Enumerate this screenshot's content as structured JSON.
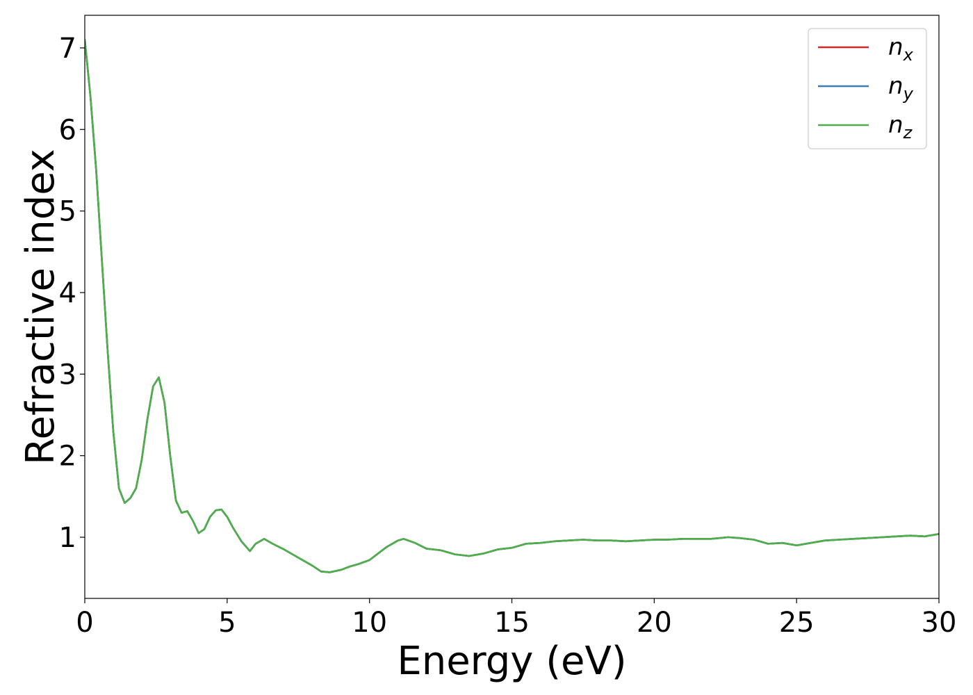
{
  "chart_data": {
    "type": "line",
    "title": "",
    "xlabel": "Energy (eV)",
    "ylabel": "Refractive index",
    "xlim": [
      0,
      30
    ],
    "ylim": [
      0.25,
      7.4
    ],
    "xticks": [
      0,
      5,
      10,
      15,
      20,
      25,
      30
    ],
    "yticks": [
      1,
      2,
      3,
      4,
      5,
      6,
      7
    ],
    "grid": false,
    "legend_position": "top-right",
    "series": [
      {
        "name": "n",
        "subscript": "x",
        "color": "#d62728",
        "x": [
          0,
          0.2,
          0.4,
          0.6,
          0.8,
          1.0,
          1.2,
          1.4,
          1.6,
          1.8,
          2.0,
          2.2,
          2.4,
          2.6,
          2.8,
          3.0,
          3.2,
          3.4,
          3.6,
          3.8,
          4.0,
          4.2,
          4.4,
          4.6,
          4.8,
          5.0,
          5.2,
          5.5,
          5.8,
          6.0,
          6.3,
          6.6,
          7.0,
          7.5,
          8.0,
          8.3,
          8.6,
          9.0,
          9.3,
          9.6,
          10.0,
          10.3,
          10.6,
          11.0,
          11.2,
          11.6,
          12.0,
          12.5,
          13.0,
          13.5,
          14.0,
          14.5,
          15.0,
          15.5,
          16.0,
          16.5,
          17.0,
          17.5,
          18.0,
          18.5,
          19.0,
          19.5,
          20.0,
          20.5,
          21.0,
          21.5,
          22.0,
          22.6,
          23.0,
          23.5,
          24.0,
          24.5,
          25.0,
          25.5,
          26.0,
          26.5,
          27.0,
          27.5,
          28.0,
          28.5,
          29.0,
          29.5,
          30.0
        ],
        "y": [
          7.1,
          6.4,
          5.5,
          4.4,
          3.3,
          2.3,
          1.6,
          1.42,
          1.48,
          1.6,
          1.95,
          2.45,
          2.85,
          2.96,
          2.65,
          2.0,
          1.45,
          1.3,
          1.32,
          1.2,
          1.05,
          1.1,
          1.25,
          1.33,
          1.34,
          1.25,
          1.12,
          0.95,
          0.83,
          0.92,
          0.98,
          0.92,
          0.85,
          0.75,
          0.65,
          0.58,
          0.57,
          0.6,
          0.64,
          0.67,
          0.72,
          0.8,
          0.88,
          0.96,
          0.98,
          0.93,
          0.86,
          0.84,
          0.79,
          0.77,
          0.8,
          0.85,
          0.87,
          0.92,
          0.93,
          0.95,
          0.96,
          0.97,
          0.96,
          0.96,
          0.95,
          0.96,
          0.97,
          0.97,
          0.98,
          0.98,
          0.98,
          1.0,
          0.99,
          0.97,
          0.92,
          0.93,
          0.9,
          0.93,
          0.96,
          0.97,
          0.98,
          0.99,
          1.0,
          1.01,
          1.02,
          1.01,
          1.04
        ]
      },
      {
        "name": "n",
        "subscript": "y",
        "color": "#377eb8",
        "x": [
          0,
          0.2,
          0.4,
          0.6,
          0.8,
          1.0,
          1.2,
          1.4,
          1.6,
          1.8,
          2.0,
          2.2,
          2.4,
          2.6,
          2.8,
          3.0,
          3.2,
          3.4,
          3.6,
          3.8,
          4.0,
          4.2,
          4.4,
          4.6,
          4.8,
          5.0,
          5.2,
          5.5,
          5.8,
          6.0,
          6.3,
          6.6,
          7.0,
          7.5,
          8.0,
          8.3,
          8.6,
          9.0,
          9.3,
          9.6,
          10.0,
          10.3,
          10.6,
          11.0,
          11.2,
          11.6,
          12.0,
          12.5,
          13.0,
          13.5,
          14.0,
          14.5,
          15.0,
          15.5,
          16.0,
          16.5,
          17.0,
          17.5,
          18.0,
          18.5,
          19.0,
          19.5,
          20.0,
          20.5,
          21.0,
          21.5,
          22.0,
          22.6,
          23.0,
          23.5,
          24.0,
          24.5,
          25.0,
          25.5,
          26.0,
          26.5,
          27.0,
          27.5,
          28.0,
          28.5,
          29.0,
          29.5,
          30.0
        ],
        "y": [
          7.1,
          6.4,
          5.5,
          4.4,
          3.3,
          2.3,
          1.6,
          1.42,
          1.48,
          1.6,
          1.95,
          2.45,
          2.85,
          2.96,
          2.65,
          2.0,
          1.45,
          1.3,
          1.32,
          1.2,
          1.05,
          1.1,
          1.25,
          1.33,
          1.34,
          1.25,
          1.12,
          0.95,
          0.83,
          0.92,
          0.98,
          0.92,
          0.85,
          0.75,
          0.65,
          0.58,
          0.57,
          0.6,
          0.64,
          0.67,
          0.72,
          0.8,
          0.88,
          0.96,
          0.98,
          0.93,
          0.86,
          0.84,
          0.79,
          0.77,
          0.8,
          0.85,
          0.87,
          0.92,
          0.93,
          0.95,
          0.96,
          0.97,
          0.96,
          0.96,
          0.95,
          0.96,
          0.97,
          0.97,
          0.98,
          0.98,
          0.98,
          1.0,
          0.99,
          0.97,
          0.92,
          0.93,
          0.9,
          0.93,
          0.96,
          0.97,
          0.98,
          0.99,
          1.0,
          1.01,
          1.02,
          1.01,
          1.04
        ]
      },
      {
        "name": "n",
        "subscript": "z",
        "color": "#4daf4a",
        "x": [
          0,
          0.2,
          0.4,
          0.6,
          0.8,
          1.0,
          1.2,
          1.4,
          1.6,
          1.8,
          2.0,
          2.2,
          2.4,
          2.6,
          2.8,
          3.0,
          3.2,
          3.4,
          3.6,
          3.8,
          4.0,
          4.2,
          4.4,
          4.6,
          4.8,
          5.0,
          5.2,
          5.5,
          5.8,
          6.0,
          6.3,
          6.6,
          7.0,
          7.5,
          8.0,
          8.3,
          8.6,
          9.0,
          9.3,
          9.6,
          10.0,
          10.3,
          10.6,
          11.0,
          11.2,
          11.6,
          12.0,
          12.5,
          13.0,
          13.5,
          14.0,
          14.5,
          15.0,
          15.5,
          16.0,
          16.5,
          17.0,
          17.5,
          18.0,
          18.5,
          19.0,
          19.5,
          20.0,
          20.5,
          21.0,
          21.5,
          22.0,
          22.6,
          23.0,
          23.5,
          24.0,
          24.5,
          25.0,
          25.5,
          26.0,
          26.5,
          27.0,
          27.5,
          28.0,
          28.5,
          29.0,
          29.5,
          30.0
        ],
        "y": [
          7.1,
          6.4,
          5.5,
          4.4,
          3.3,
          2.3,
          1.6,
          1.42,
          1.48,
          1.6,
          1.95,
          2.45,
          2.85,
          2.96,
          2.65,
          2.0,
          1.45,
          1.3,
          1.32,
          1.2,
          1.05,
          1.1,
          1.25,
          1.33,
          1.34,
          1.25,
          1.12,
          0.95,
          0.83,
          0.92,
          0.98,
          0.92,
          0.85,
          0.75,
          0.65,
          0.58,
          0.57,
          0.6,
          0.64,
          0.67,
          0.72,
          0.8,
          0.88,
          0.96,
          0.98,
          0.93,
          0.86,
          0.84,
          0.79,
          0.77,
          0.8,
          0.85,
          0.87,
          0.92,
          0.93,
          0.95,
          0.96,
          0.97,
          0.96,
          0.96,
          0.95,
          0.96,
          0.97,
          0.97,
          0.98,
          0.98,
          0.98,
          1.0,
          0.99,
          0.97,
          0.92,
          0.93,
          0.9,
          0.93,
          0.96,
          0.97,
          0.98,
          0.99,
          1.0,
          1.01,
          1.02,
          1.01,
          1.04
        ]
      }
    ]
  }
}
